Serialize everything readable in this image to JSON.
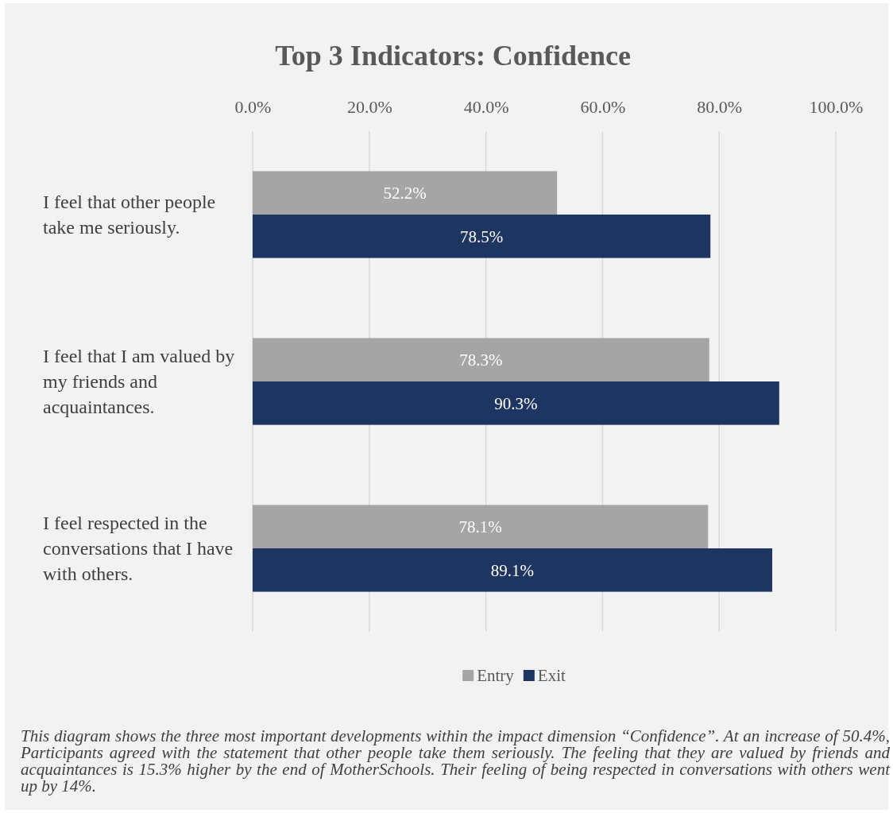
{
  "chart_data": {
    "type": "bar",
    "orientation": "horizontal",
    "title": "Top 3 Indicators: Confidence",
    "categories": [
      "I feel that other people take me seriously.",
      "I feel that I am valued by my friends and acquaintances.",
      "I feel respected in the conversations that I have with others."
    ],
    "series": [
      {
        "name": "Entry",
        "color": "#a5a5a5",
        "values": [
          52.2,
          78.3,
          78.1
        ],
        "value_labels": [
          "52.2%",
          "78.3%",
          "78.1%"
        ]
      },
      {
        "name": "Exit",
        "color": "#1f3561",
        "values": [
          78.5,
          90.3,
          89.1
        ],
        "value_labels": [
          "78.5%",
          "90.3%",
          "89.1%"
        ]
      }
    ],
    "xlim": [
      0,
      100
    ],
    "xticks": [
      {
        "value": 0,
        "label": "0.0%"
      },
      {
        "value": 20,
        "label": "20.0%"
      },
      {
        "value": 40,
        "label": "40.0%"
      },
      {
        "value": 60,
        "label": "60.0%"
      },
      {
        "value": 80,
        "label": "80.0%"
      },
      {
        "value": 100,
        "label": "100.0%"
      }
    ],
    "grid": "x",
    "legend": "bottom",
    "annotations": [
      "This diagram shows the three most important developments within the impact dimension “Confidence”. At an increase of 50.4%, Participants agreed with the statement that other people take them seriously. The feeling that they are valued by friends and acquaintances is 15.3% higher by the end of MotherSchools. Their feeling of being respected in conversations with others went up by 14%."
    ]
  }
}
